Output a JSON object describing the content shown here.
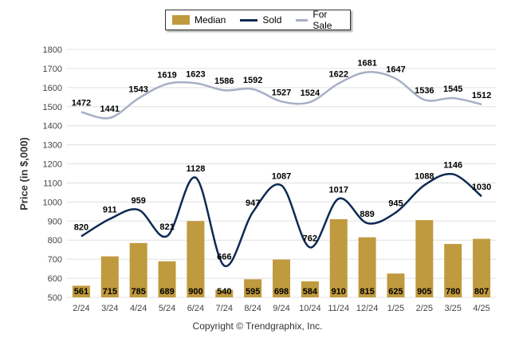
{
  "legend": {
    "median": "Median",
    "sold": "Sold",
    "for_sale": "For Sale"
  },
  "footer": {
    "copyright": "Copyright © Trendgraphix, Inc."
  },
  "colors": {
    "median": "#c09a3e",
    "sold": "#0d2a52",
    "for_sale": "#a7afc4",
    "grid": "#e0e0e0"
  },
  "chart_data": {
    "type": "bar",
    "categories": [
      "2/24",
      "3/24",
      "4/24",
      "5/24",
      "6/24",
      "7/24",
      "8/24",
      "9/24",
      "10/24",
      "11/24",
      "12/24",
      "1/25",
      "2/25",
      "3/25",
      "4/25"
    ],
    "ylabel": "Price (in $,000)",
    "ylim": [
      500,
      1800
    ],
    "yticks": [
      500,
      600,
      700,
      800,
      900,
      1000,
      1100,
      1200,
      1300,
      1400,
      1500,
      1600,
      1700,
      1800
    ],
    "grid": true,
    "legend_position": "top-center",
    "series": [
      {
        "name": "Median",
        "type": "bar",
        "values": [
          561,
          715,
          785,
          689,
          900,
          540,
          595,
          698,
          584,
          910,
          815,
          625,
          905,
          780,
          807
        ]
      },
      {
        "name": "Sold",
        "type": "line",
        "values": [
          820,
          911,
          959,
          821,
          1128,
          666,
          947,
          1087,
          762,
          1017,
          889,
          945,
          1088,
          1146,
          1030
        ]
      },
      {
        "name": "For Sale",
        "type": "line",
        "values": [
          1472,
          1441,
          1543,
          1619,
          1623,
          1586,
          1592,
          1527,
          1524,
          1622,
          1681,
          1647,
          1536,
          1545,
          1512
        ]
      }
    ]
  }
}
